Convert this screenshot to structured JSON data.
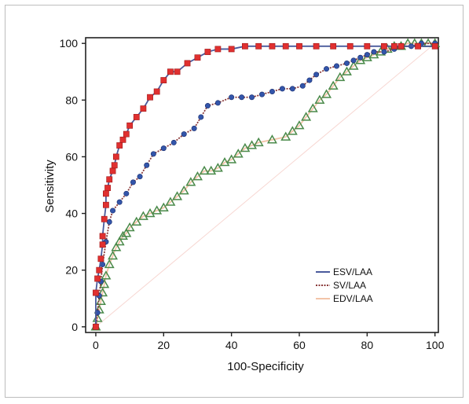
{
  "chart_data": {
    "type": "line",
    "title": "",
    "xlabel": "100-Specificity",
    "ylabel": "Sensitivity",
    "xlim": [
      -3,
      101
    ],
    "ylim": [
      -2,
      102
    ],
    "x_ticks": [
      "0",
      "20",
      "40",
      "60",
      "80",
      "100"
    ],
    "y_ticks": [
      "0",
      "20",
      "40",
      "60",
      "80",
      "100"
    ],
    "grid": false,
    "legend_position": "bottom-right",
    "series": [
      {
        "name": "ESV/LAA",
        "line_color": "#4a5a9c",
        "marker": "square",
        "marker_color": "#e03030",
        "x": [
          0,
          0,
          0.5,
          1,
          1.5,
          2,
          2,
          2.5,
          3,
          3,
          3.5,
          4,
          5,
          5.5,
          6,
          7,
          8,
          9,
          10,
          12,
          14,
          16,
          18,
          20,
          22,
          24,
          27,
          30,
          33,
          36,
          40,
          44,
          48,
          52,
          56,
          60,
          65,
          70,
          75,
          80,
          85,
          88,
          90,
          95,
          100
        ],
        "y": [
          0,
          12,
          17,
          20,
          24,
          29,
          32,
          38,
          43,
          47,
          49,
          52,
          55,
          57,
          60,
          64,
          66,
          68,
          71,
          74,
          77,
          81,
          83,
          87,
          90,
          90,
          93,
          95,
          97,
          98,
          98,
          99,
          99,
          99,
          99,
          99,
          99,
          99,
          99,
          99,
          99,
          99,
          99,
          99,
          99
        ]
      },
      {
        "name": "SV/LAA",
        "line_color": "#8a3a3a",
        "marker": "circle",
        "marker_color": "#3355aa",
        "x": [
          0,
          0.5,
          1,
          1.5,
          2,
          3,
          4,
          5,
          7,
          9,
          11,
          13,
          15,
          17,
          20,
          23,
          26,
          29,
          31,
          33,
          36,
          40,
          43,
          46,
          49,
          52,
          55,
          58,
          61,
          63,
          65,
          68,
          71,
          74,
          76,
          78,
          80,
          82,
          85,
          88,
          90,
          93,
          96,
          100
        ],
        "y": [
          0,
          5,
          11,
          16,
          22,
          30,
          37,
          41,
          44,
          47,
          51,
          53,
          57,
          61,
          63,
          65,
          68,
          70,
          74,
          78,
          79,
          81,
          81,
          81,
          82,
          83,
          84,
          84,
          85,
          87,
          89,
          91,
          92,
          93,
          94,
          95,
          96,
          97,
          97,
          98,
          99,
          99,
          100,
          100
        ]
      },
      {
        "name": "EDV/LAA",
        "line_color": "#f3c4a8",
        "marker": "triangle",
        "marker_color": "#4a8a4a",
        "x": [
          0,
          0.5,
          1,
          1.5,
          2,
          2.5,
          3,
          4,
          5,
          6,
          7,
          8,
          9,
          10,
          12,
          14,
          16,
          18,
          20,
          22,
          24,
          26,
          28,
          30,
          32,
          34,
          36,
          38,
          40,
          42,
          44,
          46,
          48,
          52,
          56,
          58,
          60,
          62,
          64,
          66,
          68,
          70,
          72,
          74,
          76,
          78,
          80,
          82,
          84,
          86,
          88,
          90,
          92,
          94,
          96,
          98,
          100
        ],
        "y": [
          0,
          3,
          6,
          9,
          12,
          15,
          18,
          22,
          25,
          28,
          30,
          32,
          33,
          35,
          37,
          39,
          40,
          41,
          42,
          44,
          46,
          48,
          51,
          53,
          55,
          55,
          56,
          58,
          59,
          61,
          63,
          64,
          65,
          66,
          67,
          69,
          71,
          74,
          77,
          80,
          82,
          85,
          88,
          90,
          92,
          94,
          95,
          96,
          97,
          98,
          99,
          99,
          100,
          100,
          100,
          100,
          100
        ]
      },
      {
        "name": "",
        "line_color": "#f7d7d2",
        "marker": "none",
        "marker_color": "",
        "x": [
          0,
          100
        ],
        "y": [
          0,
          100
        ]
      }
    ]
  }
}
